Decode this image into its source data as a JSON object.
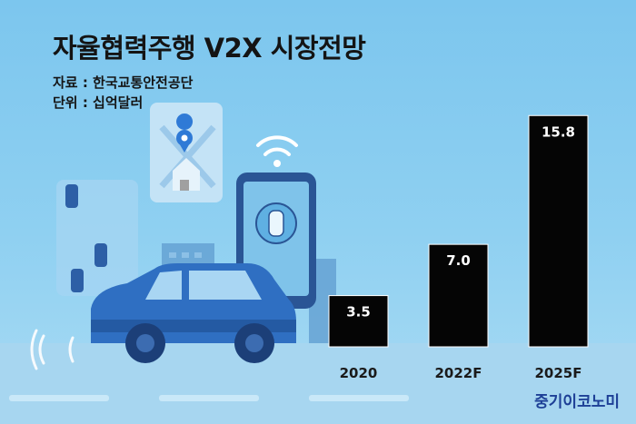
{
  "title": "자율협력주행 V2X 시장전망",
  "source": "자료 : 한국교통안전공단",
  "unit": "단위 : 십억달러",
  "brand": "중기이코노미",
  "colors": {
    "background": "#8fd0f1",
    "bar": "#050505",
    "bar_label": "#ffffff",
    "brand": "#1d3f96"
  },
  "chart_data": {
    "type": "bar",
    "title": "자율협력주행 V2X 시장전망",
    "categories": [
      "2020",
      "2022F",
      "2025F"
    ],
    "values": [
      3.5,
      7.0,
      15.8
    ],
    "value_labels": [
      "3.5",
      "7.0",
      "15.8"
    ],
    "unit": "단위 : 십억달러",
    "ylim": [
      0,
      16.5
    ],
    "grid": false,
    "legend": "none"
  }
}
